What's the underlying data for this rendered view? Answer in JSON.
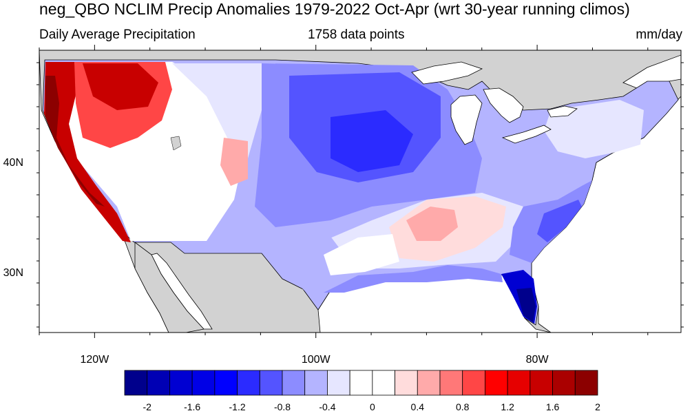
{
  "title": "neg_QBO NCLIM Precip Anomalies 1979-2022 Oct-Apr (wrt 30-year running climos)",
  "subtitle_left": "Daily Average Precipitation",
  "subtitle_center": "1758 data points",
  "subtitle_right": "mm/day",
  "lon_labels": [
    {
      "text": "120W",
      "lon": -120
    },
    {
      "text": "100W",
      "lon": -100
    },
    {
      "text": "80W",
      "lon": -80
    }
  ],
  "lat_labels": [
    {
      "text": "40N",
      "lat": 40
    },
    {
      "text": "30N",
      "lat": 30
    }
  ],
  "map_extent": {
    "lon_min": -125,
    "lon_max": -67,
    "lat_min": 24.5,
    "lat_max": 49.5
  },
  "colorbar": {
    "colors": [
      "#00008c",
      "#0000b4",
      "#0000d2",
      "#0000e6",
      "#0000ff",
      "#2b2bff",
      "#5454ff",
      "#8c8cff",
      "#b4b4ff",
      "#e6e6ff",
      "#ffffff",
      "#ffffff",
      "#ffdcdc",
      "#ffaaaa",
      "#ff7878",
      "#ff4646",
      "#ff0000",
      "#e60000",
      "#c80000",
      "#aa0000",
      "#8c0000"
    ],
    "labels": [
      "-2",
      "-1.6",
      "-1.2",
      "-0.8",
      "-0.4",
      "0",
      "0.4",
      "0.8",
      "1.2",
      "1.6",
      "2"
    ]
  },
  "colors": {
    "land_no_data": "#d2d2d2",
    "ocean": "#ffffff",
    "coastline": "#000000"
  }
}
